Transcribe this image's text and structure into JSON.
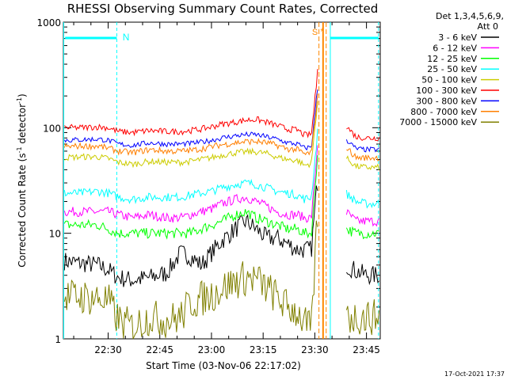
{
  "chart_data": {
    "type": "line",
    "title": "RHESSI Observing Summary Count Rates, Corrected",
    "xlabel": "Start Time (03-Nov-06 22:17:02)",
    "ylabel": "Corrected Count Rate (s⁻¹ detector⁻¹)",
    "ylabel_parts": {
      "a": "Corrected Count Rate (s",
      "b": "-1",
      "c": " detector",
      "d": "-1",
      "e": ")"
    },
    "y_scale": "log",
    "ylim": [
      1,
      1000
    ],
    "xlim_minutes": [
      0,
      92
    ],
    "x_ticks": [
      {
        "min": 13,
        "label": "22:30"
      },
      {
        "min": 28,
        "label": "22:45"
      },
      {
        "min": 43,
        "label": "23:00"
      },
      {
        "min": 58,
        "label": "23:15"
      },
      {
        "min": 73,
        "label": "23:30"
      },
      {
        "min": 88,
        "label": "23:45"
      }
    ],
    "y_ticks": [
      {
        "value": 1,
        "label": "1"
      },
      {
        "value": 10,
        "label": "10"
      },
      {
        "value": 100,
        "label": "100"
      },
      {
        "value": 1000,
        "label": "1000"
      }
    ],
    "legend_header": [
      "Det 1,3,4,5,6,9,",
      "Att 0"
    ],
    "legend_position": "right",
    "series": [
      {
        "name": "3 - 6 keV",
        "color": "#000000",
        "key": "s3_6"
      },
      {
        "name": "6 - 12 keV",
        "color": "#ff00ff",
        "key": "s6_12"
      },
      {
        "name": "12 - 25 keV",
        "color": "#00ff00",
        "key": "s12_25"
      },
      {
        "name": "25 - 50 keV",
        "color": "#00ffff",
        "key": "s25_50"
      },
      {
        "name": "50 - 100 keV",
        "color": "#cccc00",
        "key": "s50_100"
      },
      {
        "name": "100 - 300 keV",
        "color": "#ff0000",
        "key": "s100_300"
      },
      {
        "name": "300 - 800 keV",
        "color": "#0000ff",
        "key": "s300_800"
      },
      {
        "name": "800 - 7000 keV",
        "color": "#ff7f00",
        "key": "s800_7000"
      },
      {
        "name": "7000 - 15000 keV",
        "color": "#808000",
        "key": "s7000_15000"
      }
    ],
    "series_values": {
      "x": [
        0,
        5,
        10,
        13,
        16,
        20,
        25,
        30,
        34,
        37,
        40,
        43,
        46,
        50,
        53,
        56,
        59,
        62,
        65,
        68,
        70,
        72,
        73.5,
        74,
        76,
        78,
        79,
        80,
        82,
        85,
        88,
        92
      ],
      "s100_300": [
        100,
        100,
        102,
        100,
        92,
        90,
        94,
        92,
        92,
        94,
        97,
        102,
        108,
        113,
        118,
        120,
        113,
        105,
        97,
        95,
        85,
        86,
        260,
        500,
        null,
        null,
        null,
        null,
        105,
        82,
        80,
        80
      ],
      "s300_800": [
        76,
        77,
        78,
        76,
        70,
        68,
        72,
        70,
        70,
        71,
        73,
        76,
        80,
        84,
        86,
        86,
        82,
        78,
        72,
        70,
        64,
        66,
        190,
        280,
        null,
        null,
        null,
        null,
        78,
        63,
        62,
        62
      ],
      "s800_7000": [
        66,
        67,
        67,
        64,
        60,
        58,
        62,
        60,
        60,
        61,
        63,
        66,
        69,
        72,
        74,
        74,
        72,
        68,
        63,
        62,
        56,
        58,
        160,
        230,
        null,
        null,
        null,
        null,
        66,
        52,
        52,
        52
      ],
      "s50_100": [
        52,
        53,
        53,
        51,
        47,
        45,
        48,
        47,
        47,
        48,
        50,
        52,
        55,
        58,
        59,
        59,
        57,
        53,
        50,
        49,
        44,
        46,
        140,
        210,
        null,
        null,
        null,
        null,
        52,
        43,
        42,
        42
      ],
      "s25_50": [
        24,
        24,
        25,
        24,
        22,
        21,
        22,
        22,
        22,
        23,
        24,
        25,
        27,
        29,
        30,
        29,
        27,
        25,
        24,
        23,
        21,
        22,
        70,
        120,
        null,
        null,
        null,
        null,
        24,
        20,
        19,
        19
      ],
      "s6_12": [
        16,
        16,
        16,
        16,
        15,
        14,
        15,
        14,
        14,
        15,
        16,
        17,
        19,
        21,
        22,
        20,
        18,
        16,
        15,
        15,
        14,
        14,
        50,
        90,
        null,
        null,
        null,
        null,
        16,
        13,
        13,
        13
      ],
      "s12_25": [
        12,
        12,
        12,
        11,
        10,
        10,
        10,
        10,
        10,
        10,
        11,
        12,
        13,
        15,
        16,
        14,
        13,
        12,
        11,
        11,
        10,
        10,
        40,
        80,
        null,
        null,
        null,
        null,
        11,
        10,
        10,
        10
      ],
      "s3_6": [
        5.5,
        5.2,
        5.0,
        4.5,
        3.8,
        3.6,
        3.8,
        4.2,
        6.5,
        6.0,
        5.0,
        6.5,
        8.5,
        11,
        13,
        11,
        9,
        9,
        8,
        7,
        7,
        7,
        25,
        35,
        null,
        null,
        null,
        null,
        5,
        4.4,
        4.0,
        4.0
      ],
      "s7000_15000": [
        2.5,
        2.5,
        2.4,
        2.3,
        1.5,
        1.3,
        1.6,
        1.5,
        1.6,
        2.2,
        2.4,
        2.6,
        3.0,
        3.5,
        3.8,
        3.7,
        3.0,
        2.5,
        2.0,
        1.8,
        1.4,
        1.2,
        10,
        20,
        null,
        null,
        null,
        null,
        1.6,
        1.6,
        1.6,
        1.6
      ]
    },
    "annotations": {
      "night_marker": "N",
      "saa_marker": "S",
      "attenuator_marker": "*",
      "night_bar_color": "#00ffff",
      "saa_color": "#ff8800"
    }
  },
  "timestamp": "17-Oct-2021 17:37"
}
